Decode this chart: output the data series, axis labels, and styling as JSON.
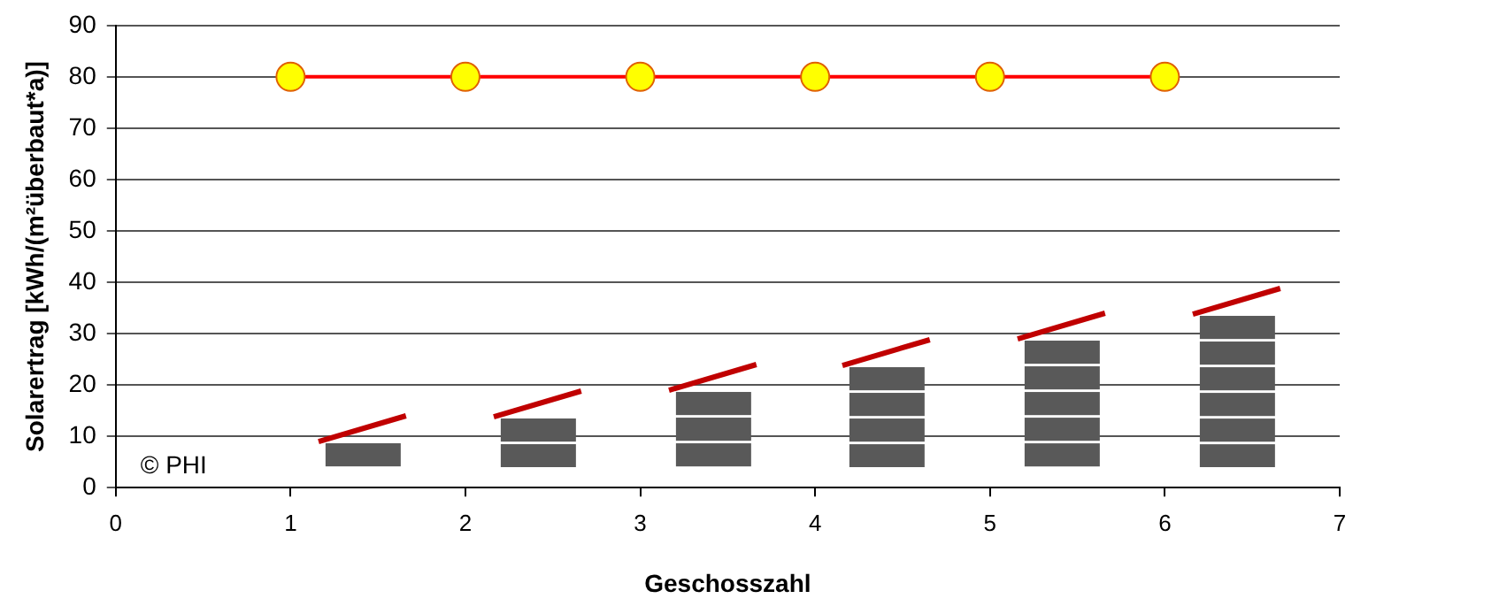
{
  "chart_data": {
    "type": "line",
    "xlabel": "Geschosszahl",
    "ylabel": "Solarertrag [kWh/(m²überbaut*a)]",
    "x": [
      1,
      2,
      3,
      4,
      5,
      6
    ],
    "series": [
      {
        "color": "#ff0000",
        "values": [
          80,
          80,
          80,
          80,
          80,
          80
        ]
      }
    ],
    "xlim": [
      0,
      7
    ],
    "xticks": [
      0,
      1,
      2,
      3,
      4,
      5,
      6,
      7
    ],
    "ylim": [
      0,
      90
    ],
    "yticks": [
      0,
      10,
      20,
      30,
      40,
      50,
      60,
      70,
      80,
      90
    ],
    "grid": "y",
    "legend": false,
    "marker": "circle",
    "line_style": "solid",
    "annotations": [
      "© PHI"
    ]
  }
}
